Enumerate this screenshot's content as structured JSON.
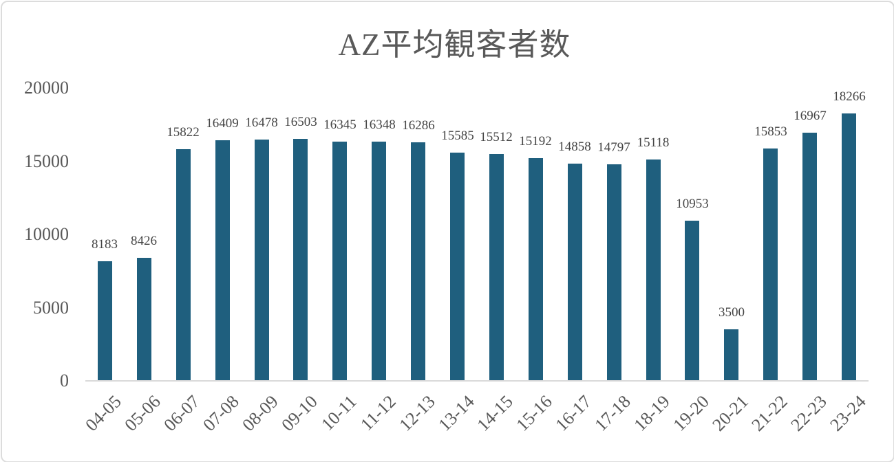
{
  "chart": {
    "title": "AZ平均観客者数",
    "colors": {
      "bar": "#1f5f7e",
      "title_text": "#595959",
      "axis_text": "#595959",
      "data_label_text": "#444444",
      "axis_line": "#d9d9d9",
      "frame_border": "#dcdcdc",
      "background": "#ffffff"
    }
  },
  "chart_data": {
    "type": "bar",
    "title": "AZ平均観客者数",
    "xlabel": "",
    "ylabel": "",
    "categories": [
      "04-05",
      "05-06",
      "06-07",
      "07-08",
      "08-09",
      "09-10",
      "10-11",
      "11-12",
      "12-13",
      "13-14",
      "14-15",
      "15-16",
      "16-17",
      "17-18",
      "18-19",
      "19-20",
      "20-21",
      "21-22",
      "22-23",
      "23-24"
    ],
    "values": [
      8183,
      8426,
      15822,
      16409,
      16478,
      16503,
      16345,
      16348,
      16286,
      15585,
      15512,
      15192,
      14858,
      14797,
      15118,
      10953,
      3500,
      15853,
      16967,
      18266
    ],
    "data_labels": [
      8183,
      8426,
      15822,
      16409,
      16478,
      16503,
      16345,
      16348,
      16286,
      15585,
      15512,
      15192,
      14858,
      14797,
      15118,
      10953,
      3500,
      15853,
      16967,
      18266
    ],
    "ylim": [
      0,
      20000
    ],
    "yticks": [
      0,
      5000,
      10000,
      15000,
      20000
    ],
    "grid": false,
    "legend": false,
    "bar_color": "#1f5f7e",
    "x_tick_rotation_deg": 45
  }
}
